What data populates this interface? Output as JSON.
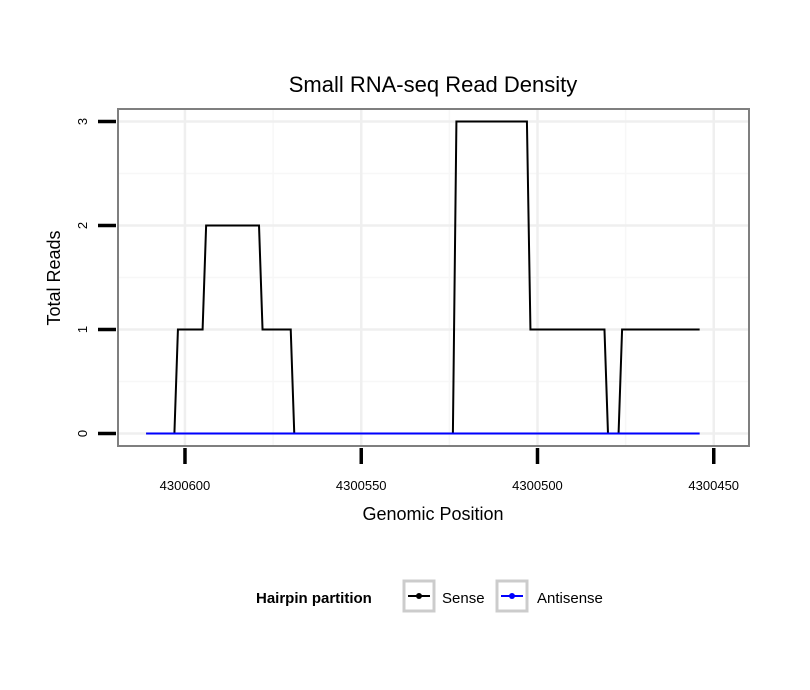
{
  "chart_data": {
    "type": "line",
    "title": "Small RNA-seq Read Density",
    "xlabel": "Genomic Position",
    "ylabel": "Total Reads",
    "x_reversed": true,
    "xlim": [
      4300619,
      4300440
    ],
    "ylim": [
      -0.12,
      3.12
    ],
    "x_ticks": [
      4300600,
      4300550,
      4300500,
      4300450
    ],
    "x_tick_labels": [
      "4300600",
      "4300550",
      "4300500",
      "4300450"
    ],
    "y_ticks": [
      0,
      1,
      2,
      3
    ],
    "y_tick_labels": [
      "0",
      "1",
      "2",
      "3"
    ],
    "grid": true,
    "legend": {
      "title": "Hairpin partition",
      "position": "bottom",
      "entries": [
        {
          "label": "Sense",
          "color": "#000000"
        },
        {
          "label": "Antisense",
          "color": "#0000ff"
        }
      ]
    },
    "series": [
      {
        "name": "Sense",
        "color": "#000000",
        "points": [
          [
            4300611,
            0
          ],
          [
            4300603,
            0
          ],
          [
            4300602,
            1
          ],
          [
            4300595,
            1
          ],
          [
            4300594,
            2
          ],
          [
            4300579,
            2
          ],
          [
            4300578,
            1
          ],
          [
            4300570,
            1
          ],
          [
            4300569,
            0
          ],
          [
            4300524,
            0
          ],
          [
            4300523,
            3
          ],
          [
            4300503,
            3
          ],
          [
            4300502,
            1
          ],
          [
            4300481,
            1
          ],
          [
            4300480,
            0
          ],
          [
            4300477,
            0
          ],
          [
            4300476,
            1
          ],
          [
            4300454,
            1
          ]
        ]
      },
      {
        "name": "Antisense",
        "color": "#0000ff",
        "points": [
          [
            4300611,
            0
          ],
          [
            4300454,
            0
          ]
        ]
      }
    ]
  }
}
